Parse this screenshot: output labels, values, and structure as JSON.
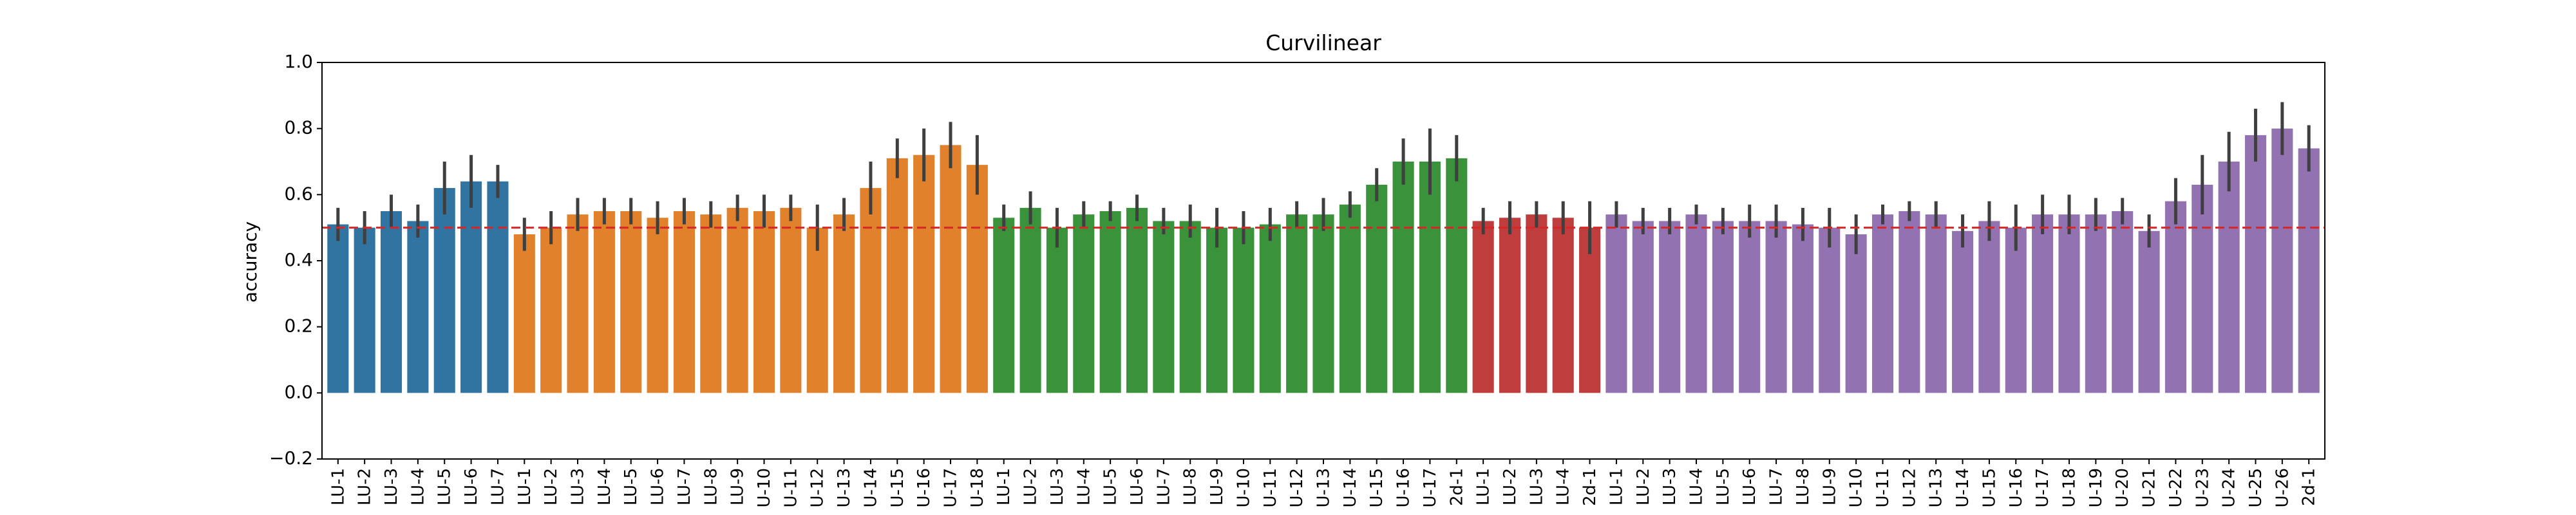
{
  "chart_data": {
    "type": "bar",
    "title": "Curvilinear",
    "xlabel": "",
    "ylabel": "accuracy",
    "ylim": [
      -0.2,
      1.0
    ],
    "yticks": [
      "1.0",
      "0.8",
      "0.6",
      "0.4",
      "0.2",
      "0.0",
      "−0.2"
    ],
    "reference_line": {
      "y": 0.5,
      "color": "#d62728",
      "style": "dashed"
    },
    "groups": [
      {
        "color": "#3274a1",
        "count": 7
      },
      {
        "color": "#e1812c",
        "count": 18
      },
      {
        "color": "#3a923a",
        "count": 18
      },
      {
        "color": "#c03d3e",
        "count": 5
      },
      {
        "color": "#9372b2",
        "count": 27
      }
    ],
    "categories": [
      "LU-1",
      "LU-2",
      "LU-3",
      "LU-4",
      "LU-5",
      "LU-6",
      "LU-7",
      "LU-1",
      "LU-2",
      "LU-3",
      "LU-4",
      "LU-5",
      "LU-6",
      "LU-7",
      "LU-8",
      "LU-9",
      "U-10",
      "U-11",
      "U-12",
      "U-13",
      "U-14",
      "U-15",
      "U-16",
      "U-17",
      "U-18",
      "LU-1",
      "LU-2",
      "LU-3",
      "LU-4",
      "LU-5",
      "LU-6",
      "LU-7",
      "LU-8",
      "LU-9",
      "U-10",
      "U-11",
      "U-12",
      "U-13",
      "U-14",
      "U-15",
      "U-16",
      "U-17",
      "2d-1",
      "LU-1",
      "LU-2",
      "LU-3",
      "LU-4",
      "2d-1",
      "LU-1",
      "LU-2",
      "LU-3",
      "LU-4",
      "LU-5",
      "LU-6",
      "LU-7",
      "LU-8",
      "LU-9",
      "U-10",
      "U-11",
      "U-12",
      "U-13",
      "U-14",
      "U-15",
      "U-16",
      "U-17",
      "U-18",
      "U-19",
      "U-20",
      "U-21",
      "U-22",
      "U-23",
      "U-24",
      "U-25",
      "U-26",
      "2d-1"
    ],
    "values": [
      0.51,
      0.5,
      0.55,
      0.52,
      0.62,
      0.64,
      0.64,
      0.48,
      0.5,
      0.54,
      0.55,
      0.55,
      0.53,
      0.55,
      0.54,
      0.56,
      0.55,
      0.56,
      0.5,
      0.54,
      0.62,
      0.71,
      0.72,
      0.75,
      0.69,
      0.53,
      0.56,
      0.5,
      0.54,
      0.55,
      0.56,
      0.52,
      0.52,
      0.5,
      0.5,
      0.51,
      0.54,
      0.54,
      0.57,
      0.63,
      0.7,
      0.7,
      0.71,
      0.52,
      0.53,
      0.54,
      0.53,
      0.5,
      0.54,
      0.52,
      0.52,
      0.54,
      0.52,
      0.52,
      0.52,
      0.51,
      0.5,
      0.48,
      0.54,
      0.55,
      0.54,
      0.49,
      0.52,
      0.5,
      0.54,
      0.54,
      0.54,
      0.55,
      0.49,
      0.58,
      0.63,
      0.7,
      0.78,
      0.8,
      0.74
    ],
    "errors": [
      0.05,
      0.05,
      0.05,
      0.05,
      0.08,
      0.08,
      0.05,
      0.05,
      0.05,
      0.05,
      0.04,
      0.04,
      0.05,
      0.04,
      0.04,
      0.04,
      0.05,
      0.04,
      0.07,
      0.05,
      0.08,
      0.06,
      0.08,
      0.07,
      0.09,
      0.04,
      0.05,
      0.06,
      0.04,
      0.03,
      0.04,
      0.04,
      0.05,
      0.06,
      0.05,
      0.05,
      0.04,
      0.05,
      0.04,
      0.05,
      0.07,
      0.1,
      0.07,
      0.04,
      0.05,
      0.04,
      0.05,
      0.08,
      0.04,
      0.04,
      0.04,
      0.03,
      0.04,
      0.05,
      0.05,
      0.05,
      0.06,
      0.06,
      0.03,
      0.03,
      0.04,
      0.05,
      0.06,
      0.07,
      0.06,
      0.06,
      0.05,
      0.04,
      0.05,
      0.07,
      0.09,
      0.09,
      0.08,
      0.08,
      0.07
    ]
  }
}
